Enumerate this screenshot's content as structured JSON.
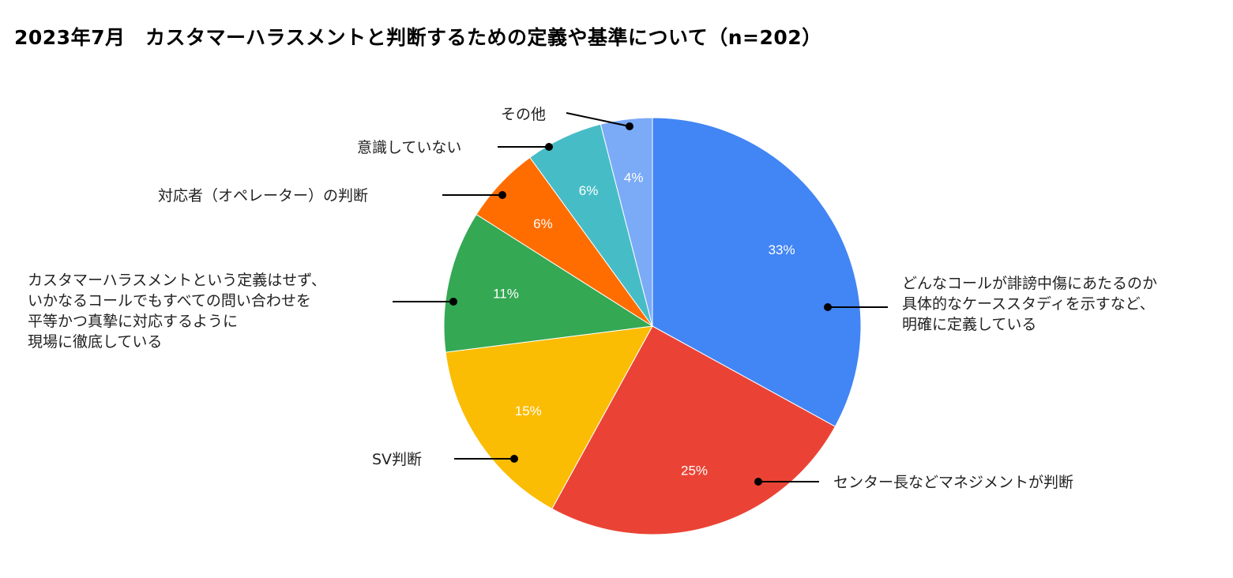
{
  "title": "2023年7月　カスタマーハラスメントと判断するための定義や基準について（n=202）",
  "chart_data": {
    "type": "pie",
    "title": "2023年7月　カスタマーハラスメントと判断するための定義や基準について（n=202）",
    "n": 202,
    "categories": [
      "どんなコールが誹謗中傷にあたるのか具体的なケーススタディを示すなど、明確に定義している",
      "センター長などマネジメントが判断",
      "SV判断",
      "カスタマーハラスメントという定義はせず、いかなるコールでもすべての問い合わせを平等かつ真摯に対応するように現場に徹底している",
      "対応者（オペレーター）の判断",
      "意識していない",
      "その他"
    ],
    "values": [
      33,
      25,
      15,
      11,
      6,
      6,
      4
    ],
    "unit": "%",
    "colors": [
      "#4285F4",
      "#EA4335",
      "#FBBC04",
      "#34A853",
      "#FF6D01",
      "#46BDC6",
      "#7BAAF7"
    ],
    "start_angle": "top, clockwise",
    "legend": "callout labels"
  },
  "labels": [
    {
      "text": "どんなコールが誹謗中傷にあたるのか\n具体的なケーススタディを示すなど、\n明確に定義している",
      "pct": "33%"
    },
    {
      "text": "センター長などマネジメントが判断",
      "pct": "25%"
    },
    {
      "text": "SV判断",
      "pct": "15%"
    },
    {
      "text": "カスタマーハラスメントという定義はせず、\nいかなるコールでもすべての問い合わせを\n平等かつ真摯に対応するように\n現場に徹底している",
      "pct": "11%"
    },
    {
      "text": "対応者（オペレーター）の判断",
      "pct": "6%"
    },
    {
      "text": "意識していない",
      "pct": "6%"
    },
    {
      "text": "その他",
      "pct": "4%"
    }
  ]
}
